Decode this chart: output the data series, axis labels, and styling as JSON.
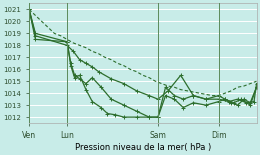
{
  "title": "Pression niveau de la mer( hPa )",
  "bg_color": "#c8ece8",
  "grid_color": "#ffffff",
  "line_color": "#2d6e2d",
  "ylim": [
    1011.5,
    1021.5
  ],
  "yticks": [
    1012,
    1013,
    1014,
    1015,
    1016,
    1017,
    1018,
    1019,
    1020,
    1021
  ],
  "xtick_labels": [
    "Ven",
    "Lun",
    "Sam",
    "Dim"
  ],
  "xtick_pos": [
    0,
    30,
    102,
    150
  ],
  "vline_pos": [
    0,
    30,
    102,
    150
  ],
  "total_steps": 180,
  "series": [
    {
      "x": [
        0,
        5,
        10,
        15,
        20,
        25,
        30,
        35,
        40,
        45,
        50,
        55,
        60,
        65,
        70,
        75,
        80,
        85,
        90,
        95,
        100,
        105,
        110,
        115,
        120,
        125,
        130,
        135,
        140,
        145,
        150,
        155,
        160,
        165,
        170,
        175,
        180
      ],
      "y": [
        1021,
        1020.5,
        1020,
        1019.5,
        1019,
        1018.8,
        1018.5,
        1018.2,
        1018,
        1017.8,
        1017.5,
        1017.3,
        1017,
        1016.8,
        1016.5,
        1016.3,
        1016,
        1015.8,
        1015.5,
        1015.3,
        1015,
        1014.8,
        1014.6,
        1014.5,
        1014.3,
        1014.2,
        1014.1,
        1014.0,
        1013.9,
        1013.8,
        1013.8,
        1014.0,
        1014.2,
        1014.5,
        1014.6,
        1014.8,
        1015.0
      ],
      "style": "--",
      "marker": null,
      "lw": 0.8
    },
    {
      "x": [
        0,
        5,
        30,
        33,
        36,
        40,
        45,
        50,
        57,
        65,
        75,
        85,
        95,
        102,
        108,
        115,
        122,
        130,
        140,
        150,
        155,
        160,
        165,
        170,
        175,
        180
      ],
      "y": [
        1021,
        1019,
        1018.3,
        1016.5,
        1015.5,
        1015.2,
        1014.8,
        1015.3,
        1014.5,
        1013.5,
        1013.0,
        1012.5,
        1012.0,
        1012.0,
        1013.8,
        1013.5,
        1012.8,
        1013.2,
        1013.0,
        1013.3,
        1013.5,
        1013.2,
        1013.0,
        1013.5,
        1013.2,
        1014.5
      ],
      "style": "-",
      "marker": "+",
      "lw": 0.9
    },
    {
      "x": [
        0,
        5,
        30,
        35,
        40,
        45,
        50,
        55,
        65,
        75,
        85,
        95,
        102,
        110,
        120,
        130,
        140,
        150,
        155,
        162,
        168,
        175,
        180
      ],
      "y": [
        1021,
        1018.8,
        1018,
        1017.5,
        1016.8,
        1016.5,
        1016.2,
        1015.8,
        1015.2,
        1014.8,
        1014.2,
        1013.8,
        1013.5,
        1014.2,
        1015.5,
        1013.8,
        1013.5,
        1013.8,
        1013.5,
        1013.2,
        1013.5,
        1013.0,
        1014.5
      ],
      "style": "-",
      "marker": "+",
      "lw": 0.9
    },
    {
      "x": [
        0,
        5,
        30,
        33,
        36,
        40,
        45,
        50,
        57,
        62,
        68,
        75,
        85,
        95,
        102,
        108,
        115,
        122,
        130,
        140,
        150,
        158,
        165,
        172,
        178,
        180
      ],
      "y": [
        1021,
        1018.5,
        1018.3,
        1016.3,
        1015.3,
        1015.5,
        1014.3,
        1013.3,
        1012.8,
        1012.3,
        1012.2,
        1012.0,
        1012.0,
        1012.0,
        1012.0,
        1014.5,
        1013.8,
        1013.5,
        1013.8,
        1013.5,
        1013.5,
        1013.3,
        1013.5,
        1013.2,
        1013.3,
        1014.8
      ],
      "style": "-",
      "marker": "+",
      "lw": 0.9
    }
  ]
}
